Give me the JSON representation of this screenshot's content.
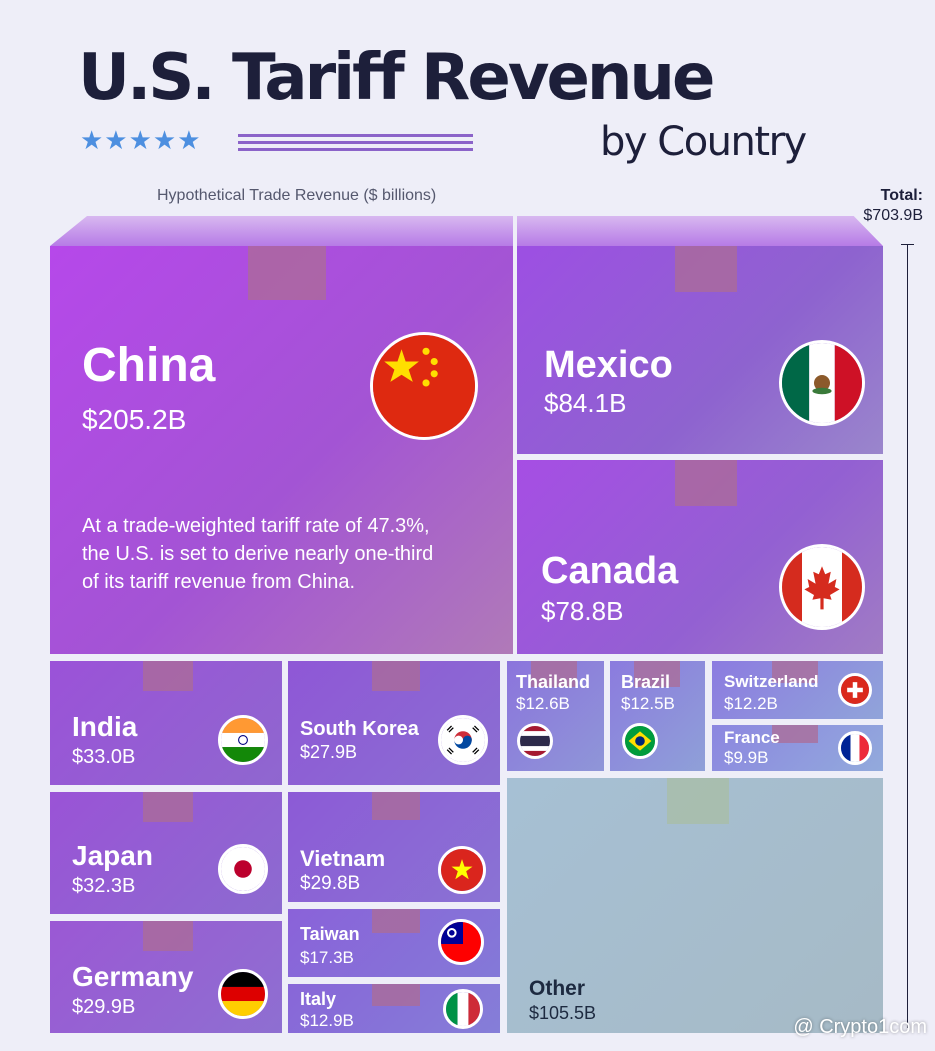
{
  "header": {
    "title": "U.S. Tariff Revenue",
    "subtitle": "by Country",
    "stars": "★★★★★",
    "caption": "Hypothetical Trade Revenue ($ billions)",
    "total_label": "Total:",
    "total_value": "$703.9B"
  },
  "note": "At a trade-weighted tariff rate of 47.3%, the U.S. is set to derive nearly one-third of its tariff revenue from China.",
  "watermark": "@ Crypto1com",
  "chart_data": {
    "type": "treemap",
    "title": "U.S. Tariff Revenue by Country",
    "unit": "$ billions",
    "total": 703.9,
    "items": [
      {
        "id": "china",
        "label": "China",
        "value": 205.2,
        "display": "$205.2B"
      },
      {
        "id": "mexico",
        "label": "Mexico",
        "value": 84.1,
        "display": "$84.1B"
      },
      {
        "id": "canada",
        "label": "Canada",
        "value": 78.8,
        "display": "$78.8B"
      },
      {
        "id": "india",
        "label": "India",
        "value": 33.0,
        "display": "$33.0B"
      },
      {
        "id": "japan",
        "label": "Japan",
        "value": 32.3,
        "display": "$32.3B"
      },
      {
        "id": "germany",
        "label": "Germany",
        "value": 29.9,
        "display": "$29.9B"
      },
      {
        "id": "south_korea",
        "label": "South Korea",
        "value": 27.9,
        "display": "$27.9B"
      },
      {
        "id": "vietnam",
        "label": "Vietnam",
        "value": 29.8,
        "display": "$29.8B"
      },
      {
        "id": "taiwan",
        "label": "Taiwan",
        "value": 17.3,
        "display": "$17.3B"
      },
      {
        "id": "italy",
        "label": "Italy",
        "value": 12.9,
        "display": "$12.9B"
      },
      {
        "id": "thailand",
        "label": "Thailand",
        "value": 12.6,
        "display": "$12.6B"
      },
      {
        "id": "brazil",
        "label": "Brazil",
        "value": 12.5,
        "display": "$12.5B"
      },
      {
        "id": "switzerland",
        "label": "Switzerland",
        "value": 12.2,
        "display": "$12.2B"
      },
      {
        "id": "france",
        "label": "France",
        "value": 9.9,
        "display": "$9.9B"
      },
      {
        "id": "other",
        "label": "Other",
        "value": 105.5,
        "display": "$105.5B"
      }
    ]
  }
}
